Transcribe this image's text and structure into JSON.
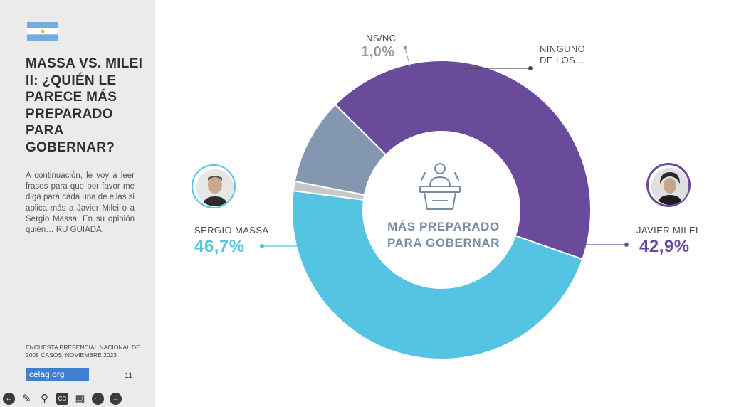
{
  "sidebar": {
    "title_lines": [
      "MASSA VS. MILEI",
      "II: ¿QUIÉN LE",
      "PARECE MÁS",
      "PREPARADO",
      "PARA",
      "GOBERNAR?"
    ],
    "description": "A continuación, le voy a leer frases para que por favor me diga para cada una de ellas si aplica más a Javier Milei o a Sergio Massa. En su opinión quién… RU GUIADA.",
    "source_lines": [
      "ENCUESTA PRESENCIAL NACIONAL DE",
      "2005 CASOS. NOVIEMBRE 2023"
    ],
    "logo": {
      "main": "celag",
      "suffix": ".org"
    },
    "page_number": "11"
  },
  "toolbar": {
    "buttons": [
      "back-icon",
      "pen-icon",
      "zoom-icon",
      "captions-icon",
      "camera-off-icon",
      "more-icon",
      "forward-icon"
    ],
    "captions_text": "CC"
  },
  "chart_data": {
    "type": "pie",
    "donut": true,
    "center_label_lines": [
      "MÁS PREPARADO",
      "PARA GOBERNAR"
    ],
    "slices": [
      {
        "label": "NINGUNO DE LOS...",
        "label_lines": [
          "NINGUNO",
          "DE LOS…"
        ],
        "value": 9.4,
        "display": "",
        "color": "#8497b0"
      },
      {
        "label": "JAVIER MILEI",
        "value": 42.9,
        "display": "42,9%",
        "color": "#6a4b9b"
      },
      {
        "label": "SERGIO MASSA",
        "value": 46.7,
        "display": "46,7%",
        "color": "#55c3e2"
      },
      {
        "label": "NS/NC",
        "value": 1.0,
        "display": "1,0%",
        "color": "#c8c8c8"
      }
    ]
  },
  "colors": {
    "massa": "#55c3e2",
    "milei": "#6a4b9b",
    "ninguno": "#8497b0",
    "nsnc": "#c8c8c8",
    "text_dark": "#2f2f2f",
    "center_text": "#7a8ba6"
  }
}
